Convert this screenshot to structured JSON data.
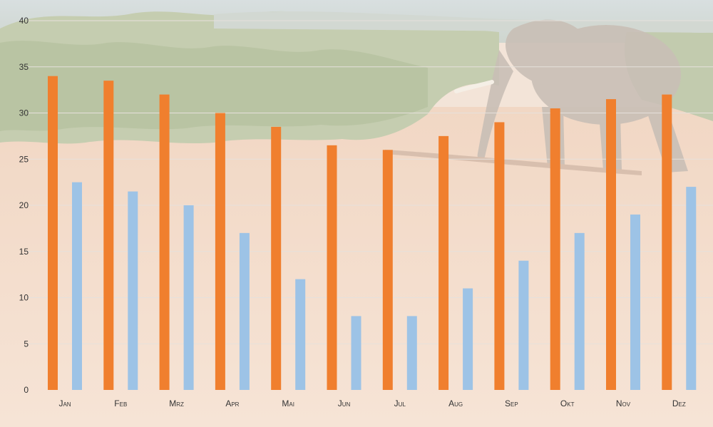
{
  "chart_data": {
    "type": "bar",
    "categories": [
      "Jan",
      "Feb",
      "Mrz",
      "Apr",
      "Mai",
      "Jun",
      "Jul",
      "Aug",
      "Sep",
      "Okt",
      "Nov",
      "Dez"
    ],
    "series": [
      {
        "color": "#F07F2E",
        "values": [
          34,
          33.5,
          32,
          30,
          28.5,
          26.5,
          26,
          27.5,
          29,
          30.5,
          31.5,
          32
        ]
      },
      {
        "color": "#9DC3E6",
        "values": [
          22.5,
          21.5,
          20,
          17,
          12,
          8,
          8,
          11,
          14,
          17,
          19,
          22
        ]
      }
    ],
    "yticks": [
      "0",
      "5",
      "10",
      "15",
      "20",
      "25",
      "30",
      "35",
      "40"
    ],
    "ylim": [
      0,
      40
    ],
    "grid": true,
    "legend": "none",
    "background": "faded photo of an elephant crossing a dirt road with bush in the background"
  }
}
